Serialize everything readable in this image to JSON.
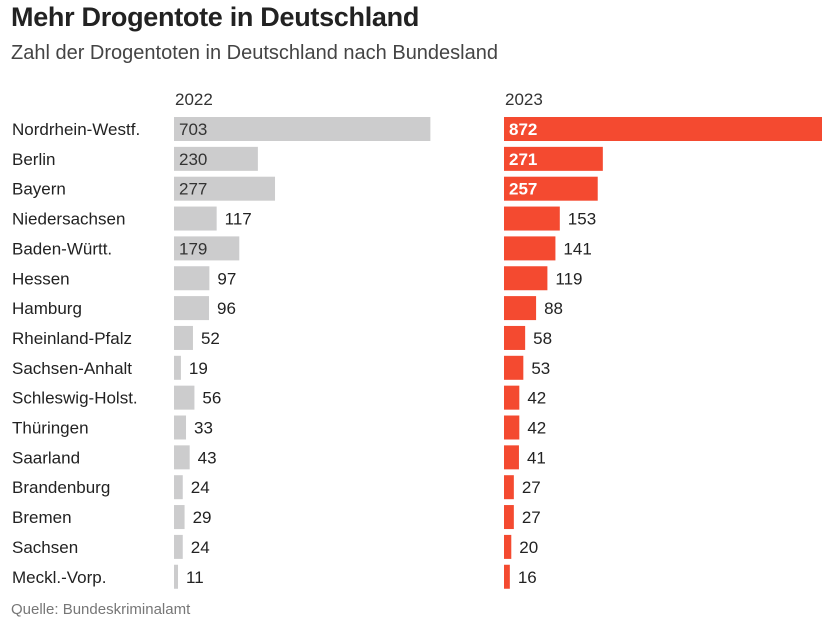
{
  "title": "Mehr Drogentote in Deutschland",
  "subtitle": "Zahl der Drogentoten in Deutschland nach Bundesland",
  "source": "Quelle: Bundeskriminalamt",
  "colors": {
    "y2022": "#cccccd",
    "y2023": "#f44a30",
    "text_inside_2022": "#333333",
    "text_inside_2023": "#ffffff",
    "text_outside": "#222222"
  },
  "chart_data": {
    "type": "bar",
    "orientation": "horizontal",
    "title": "Mehr Drogentote in Deutschland",
    "subtitle": "Zahl der Drogentoten in Deutschland nach Bundesland",
    "xlabel": "",
    "ylabel": "",
    "categories": [
      "Nordrhein-Westf.",
      "Berlin",
      "Bayern",
      "Niedersachsen",
      "Baden-Württ.",
      "Hessen",
      "Hamburg",
      "Rheinland-Pfalz",
      "Sachsen-Anhalt",
      "Schleswig-Holst.",
      "Thüringen",
      "Saarland",
      "Brandenburg",
      "Bremen",
      "Sachsen",
      "Meckl.-Vorp."
    ],
    "series": [
      {
        "name": "2022",
        "values": [
          703,
          230,
          277,
          117,
          179,
          97,
          96,
          52,
          19,
          56,
          33,
          43,
          24,
          29,
          24,
          11
        ]
      },
      {
        "name": "2023",
        "values": [
          872,
          271,
          257,
          153,
          141,
          119,
          88,
          58,
          53,
          42,
          42,
          41,
          27,
          27,
          20,
          16
        ]
      }
    ],
    "xlim": [
      0,
      872
    ],
    "grid": false,
    "legend": "none",
    "source": "Quelle: Bundeskriminalamt"
  }
}
